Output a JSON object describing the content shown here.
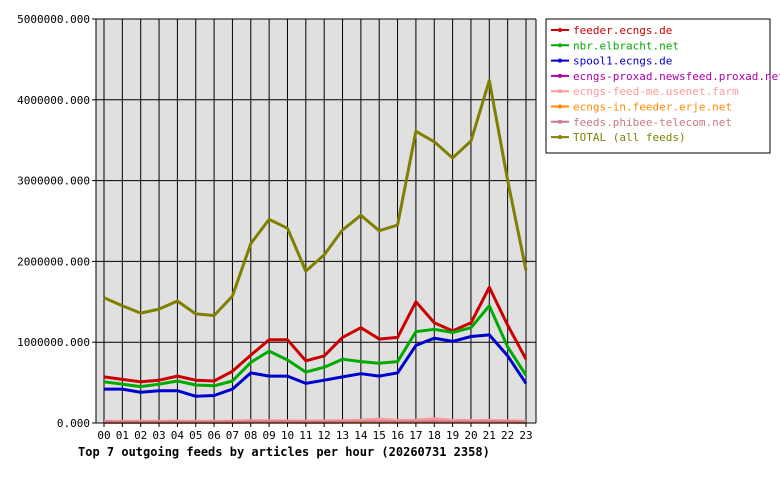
{
  "chart_data": {
    "type": "line",
    "title": "Top 7 outgoing feeds by articles per hour (20260731 2358)",
    "categories": [
      "00",
      "01",
      "02",
      "03",
      "04",
      "05",
      "06",
      "07",
      "08",
      "09",
      "10",
      "11",
      "12",
      "13",
      "14",
      "15",
      "16",
      "17",
      "18",
      "19",
      "20",
      "21",
      "22",
      "23"
    ],
    "yticks": [
      "0.000",
      "1000000.000",
      "2000000.000",
      "3000000.000",
      "4000000.000",
      "5000000.000"
    ],
    "ylim": [
      0,
      5000000
    ],
    "grid": true,
    "legend_position": "top-right",
    "colors": {
      "plot_background": "#e0e0e0",
      "grid": "#000000"
    },
    "series": [
      {
        "name": "feeder.ecngs.de",
        "color": "#cc0000",
        "values": [
          570000,
          540000,
          510000,
          530000,
          580000,
          530000,
          520000,
          640000,
          840000,
          1030000,
          1030000,
          770000,
          830000,
          1060000,
          1180000,
          1040000,
          1060000,
          1500000,
          1240000,
          1140000,
          1240000,
          1680000,
          1210000,
          790000
        ]
      },
      {
        "name": "nbr.elbracht.net",
        "color": "#00aa00",
        "values": [
          510000,
          480000,
          450000,
          480000,
          520000,
          470000,
          460000,
          520000,
          750000,
          890000,
          780000,
          630000,
          690000,
          790000,
          760000,
          740000,
          760000,
          1130000,
          1160000,
          1120000,
          1180000,
          1450000,
          940000,
          590000
        ]
      },
      {
        "name": "spool1.ecngs.de",
        "color": "#0000cc",
        "values": [
          420000,
          420000,
          380000,
          400000,
          400000,
          330000,
          340000,
          420000,
          620000,
          580000,
          580000,
          490000,
          530000,
          570000,
          610000,
          580000,
          620000,
          960000,
          1050000,
          1010000,
          1070000,
          1090000,
          830000,
          490000
        ]
      },
      {
        "name": "ecngs-proxad.newsfeed.proxad.net",
        "color": "#aa00aa",
        "values": [
          15000,
          15000,
          14000,
          14000,
          15000,
          14000,
          14000,
          15000,
          16000,
          17000,
          17000,
          15000,
          15000,
          16000,
          17000,
          16000,
          16000,
          18000,
          18000,
          17000,
          17000,
          19000,
          16000,
          14000
        ]
      },
      {
        "name": "ecngs-feed-me.usenet.farm",
        "color": "#ff9999",
        "values": [
          22000,
          22000,
          21000,
          21000,
          23000,
          22000,
          22000,
          24000,
          30000,
          28000,
          26000,
          24000,
          26000,
          30000,
          34000,
          48000,
          32000,
          34000,
          52000,
          34000,
          30000,
          32000,
          27000,
          22000
        ]
      },
      {
        "name": "ecngs-in.feeder.erje.net",
        "color": "#ff8800",
        "values": [
          8000,
          8000,
          8000,
          8000,
          8000,
          8000,
          8000,
          8000,
          9000,
          9000,
          9000,
          8000,
          8000,
          9000,
          9000,
          9000,
          9000,
          10000,
          10000,
          9000,
          9000,
          10000,
          9000,
          8000
        ]
      },
      {
        "name": "feeds.phibee-telecom.net",
        "color": "#cc7788",
        "values": [
          10000,
          10000,
          10000,
          10000,
          10000,
          10000,
          10000,
          10000,
          12000,
          12000,
          12000,
          11000,
          11000,
          12000,
          12000,
          12000,
          12000,
          13000,
          13000,
          12000,
          12000,
          13000,
          12000,
          10000
        ]
      },
      {
        "name": "TOTAL (all feeds)",
        "color": "#808000",
        "values": [
          1550000,
          1450000,
          1360000,
          1410000,
          1510000,
          1350000,
          1330000,
          1570000,
          2220000,
          2520000,
          2410000,
          1880000,
          2080000,
          2390000,
          2570000,
          2380000,
          2450000,
          3610000,
          3480000,
          3280000,
          3490000,
          4240000,
          3000000,
          1890000
        ]
      }
    ]
  }
}
